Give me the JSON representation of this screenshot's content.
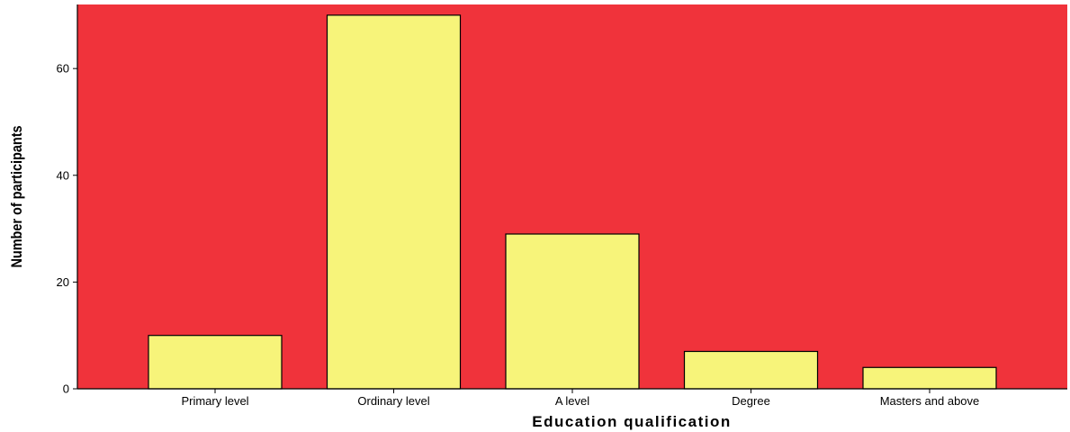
{
  "chart_data": {
    "type": "bar",
    "title": "",
    "xlabel": "Education qualification",
    "ylabel": "Number of participants",
    "categories": [
      "Primary level",
      "Ordinary level",
      "A level",
      "Degree",
      "Masters and above"
    ],
    "values": [
      10,
      70,
      29,
      7,
      4
    ],
    "ylim": [
      0,
      72
    ],
    "yticks": [
      0,
      20,
      40,
      60
    ],
    "grid": false,
    "legend": "none",
    "colors": {
      "plot_background": "#f0333b",
      "bar_fill": "#f7f47a",
      "bar_stroke": "#000000",
      "axis": "#000000"
    }
  }
}
